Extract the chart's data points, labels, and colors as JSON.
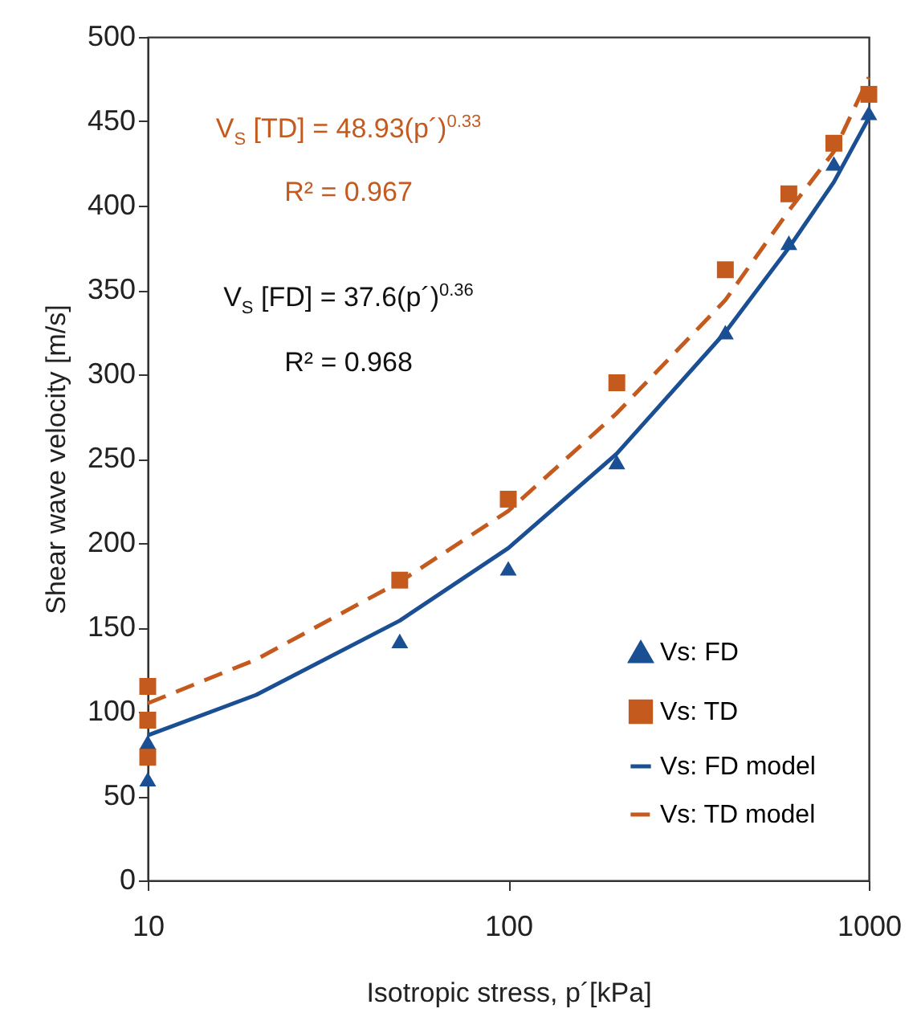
{
  "chart_data": {
    "type": "scatter",
    "xlabel": "Isotropic stress, p´[kPa]",
    "ylabel": "Shear wave velocity [m/s]",
    "log": "x",
    "xlim": [
      10,
      1000
    ],
    "xticks": [
      10,
      100,
      1000
    ],
    "ylim": [
      0,
      500
    ],
    "yticks": [
      0,
      50,
      100,
      150,
      200,
      250,
      300,
      350,
      400,
      450,
      500
    ],
    "grid": false,
    "legend": "bottom right",
    "annotations": [
      "V$_{S}$ [TD] = 48.93(p´)$^{0.33}$",
      "R² = 0.967",
      "V$_{S}$ [FD] = 37.6(p´)$^{0.36}$",
      "R² = 0.968"
    ],
    "series": [
      {
        "name": "Vs: FD",
        "marker": "triangle",
        "color": "#1b4f93",
        "x": [
          10,
          10,
          50,
          100,
          200,
          400,
          600,
          800,
          1000
        ],
        "values": [
          60,
          82,
          142,
          185,
          248,
          325,
          378,
          425,
          455
        ]
      },
      {
        "name": "Vs: TD",
        "marker": "square",
        "color": "#c55a1e",
        "x": [
          10,
          10,
          10,
          50,
          100,
          200,
          400,
          600,
          800,
          1000
        ],
        "values": [
          73,
          95,
          115,
          178,
          226,
          295,
          362,
          407,
          437,
          466
        ]
      },
      {
        "name": "Vs: FD model",
        "type": "line",
        "line_style": "solid",
        "color": "#1b4f93",
        "x": [
          10,
          20,
          50,
          100,
          200,
          400,
          600,
          800,
          1000
        ],
        "values": [
          86,
          110,
          154,
          197,
          253,
          325,
          375,
          414,
          452
        ]
      },
      {
        "name": "Vs: TD model",
        "type": "line",
        "line_style": "dashed",
        "color": "#c55a1e",
        "x": [
          10,
          20,
          50,
          100,
          200,
          400,
          600,
          800,
          1000
        ],
        "values": [
          105,
          131,
          177,
          219,
          277,
          344,
          397,
          432,
          476
        ]
      }
    ]
  }
}
